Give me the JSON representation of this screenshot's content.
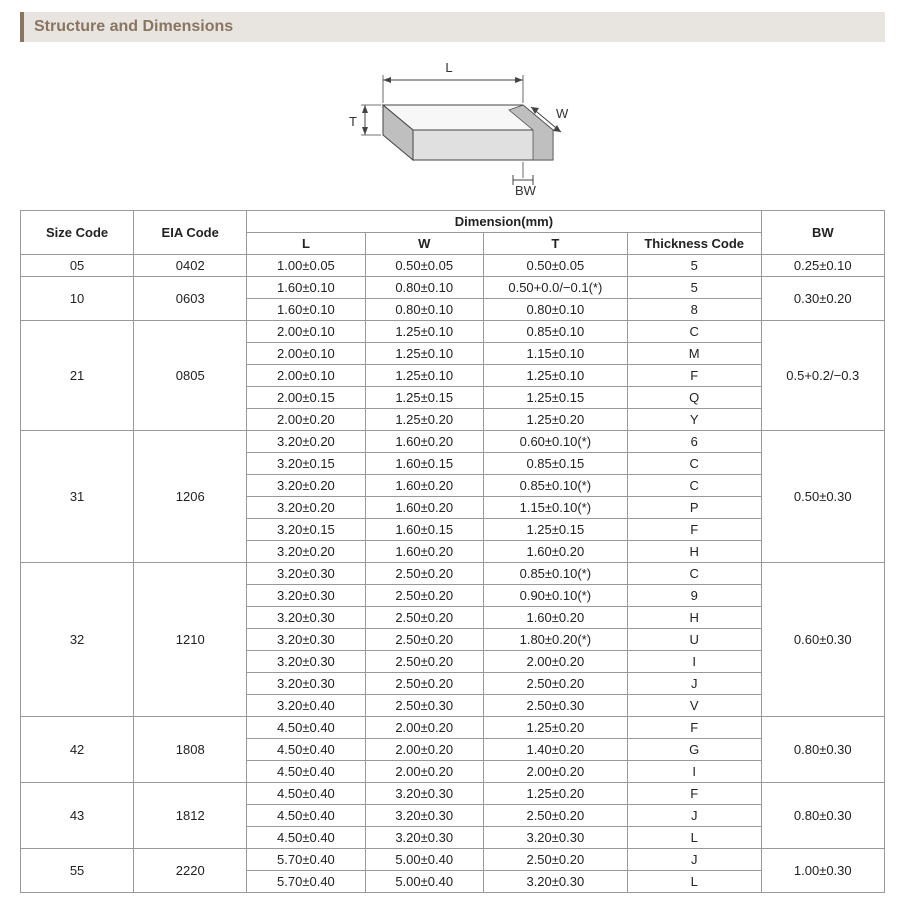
{
  "section_title": "Structure and Dimensions",
  "diagram": {
    "labels": {
      "L": "L",
      "W": "W",
      "T": "T",
      "BW": "BW"
    },
    "stroke": "#444444",
    "fill_light": "#f7f7f7",
    "fill_mid": "#e0e0e0",
    "fill_dark": "#bfbfbf",
    "text_color": "#333333",
    "font_size": 13
  },
  "table": {
    "headers": {
      "size_code": "Size Code",
      "eia_code": "EIA Code",
      "dimension_group": "Dimension(mm)",
      "L": "L",
      "W": "W",
      "T": "T",
      "thickness_code": "Thickness  Code",
      "BW": "BW"
    },
    "col_widths": [
      "110px",
      "110px",
      "115px",
      "115px",
      "140px",
      "130px",
      "120px"
    ],
    "groups": [
      {
        "size_code": "05",
        "eia_code": "0402",
        "bw": "0.25±0.10",
        "rows": [
          {
            "L": "1.00±0.05",
            "W": "0.50±0.05",
            "T": "0.50±0.05",
            "TC": "5"
          }
        ]
      },
      {
        "size_code": "10",
        "eia_code": "0603",
        "bw": "0.30±0.20",
        "rows": [
          {
            "L": "1.60±0.10",
            "W": "0.80±0.10",
            "T": "0.50+0.0/−0.1(*)",
            "TC": "5"
          },
          {
            "L": "1.60±0.10",
            "W": "0.80±0.10",
            "T": "0.80±0.10",
            "TC": "8"
          }
        ]
      },
      {
        "size_code": "21",
        "eia_code": "0805",
        "bw": "0.5+0.2/−0.3",
        "rows": [
          {
            "L": "2.00±0.10",
            "W": "1.25±0.10",
            "T": "0.85±0.10",
            "TC": "C"
          },
          {
            "L": "2.00±0.10",
            "W": "1.25±0.10",
            "T": "1.15±0.10",
            "TC": "M"
          },
          {
            "L": "2.00±0.10",
            "W": "1.25±0.10",
            "T": "1.25±0.10",
            "TC": "F"
          },
          {
            "L": "2.00±0.15",
            "W": "1.25±0.15",
            "T": "1.25±0.15",
            "TC": "Q"
          },
          {
            "L": "2.00±0.20",
            "W": "1.25±0.20",
            "T": "1.25±0.20",
            "TC": "Y"
          }
        ]
      },
      {
        "size_code": "31",
        "eia_code": "1206",
        "bw": "0.50±0.30",
        "rows": [
          {
            "L": "3.20±0.20",
            "W": "1.60±0.20",
            "T": "0.60±0.10(*)",
            "TC": "6"
          },
          {
            "L": "3.20±0.15",
            "W": "1.60±0.15",
            "T": "0.85±0.15",
            "TC": "C"
          },
          {
            "L": "3.20±0.20",
            "W": "1.60±0.20",
            "T": "0.85±0.10(*)",
            "TC": "C"
          },
          {
            "L": "3.20±0.20",
            "W": "1.60±0.20",
            "T": "1.15±0.10(*)",
            "TC": "P"
          },
          {
            "L": "3.20±0.15",
            "W": "1.60±0.15",
            "T": "1.25±0.15",
            "TC": "F"
          },
          {
            "L": "3.20±0.20",
            "W": "1.60±0.20",
            "T": "1.60±0.20",
            "TC": "H"
          }
        ]
      },
      {
        "size_code": "32",
        "eia_code": "1210",
        "bw": "0.60±0.30",
        "rows": [
          {
            "L": "3.20±0.30",
            "W": "2.50±0.20",
            "T": "0.85±0.10(*)",
            "TC": "C"
          },
          {
            "L": "3.20±0.30",
            "W": "2.50±0.20",
            "T": "0.90±0.10(*)",
            "TC": "9"
          },
          {
            "L": "3.20±0.30",
            "W": "2.50±0.20",
            "T": "1.60±0.20",
            "TC": "H"
          },
          {
            "L": "3.20±0.30",
            "W": "2.50±0.20",
            "T": "1.80±0.20(*)",
            "TC": "U"
          },
          {
            "L": "3.20±0.30",
            "W": "2.50±0.20",
            "T": "2.00±0.20",
            "TC": "I"
          },
          {
            "L": "3.20±0.30",
            "W": "2.50±0.20",
            "T": "2.50±0.20",
            "TC": "J"
          },
          {
            "L": "3.20±0.40",
            "W": "2.50±0.30",
            "T": "2.50±0.30",
            "TC": "V"
          }
        ]
      },
      {
        "size_code": "42",
        "eia_code": "1808",
        "bw": "0.80±0.30",
        "rows": [
          {
            "L": "4.50±0.40",
            "W": "2.00±0.20",
            "T": "1.25±0.20",
            "TC": "F"
          },
          {
            "L": "4.50±0.40",
            "W": "2.00±0.20",
            "T": "1.40±0.20",
            "TC": "G"
          },
          {
            "L": "4.50±0.40",
            "W": "2.00±0.20",
            "T": "2.00±0.20",
            "TC": "I"
          }
        ]
      },
      {
        "size_code": "43",
        "eia_code": "1812",
        "bw": "0.80±0.30",
        "rows": [
          {
            "L": "4.50±0.40",
            "W": "3.20±0.30",
            "T": "1.25±0.20",
            "TC": "F"
          },
          {
            "L": "4.50±0.40",
            "W": "3.20±0.30",
            "T": "2.50±0.20",
            "TC": "J"
          },
          {
            "L": "4.50±0.40",
            "W": "3.20±0.30",
            "T": "3.20±0.30",
            "TC": "L"
          }
        ]
      },
      {
        "size_code": "55",
        "eia_code": "2220",
        "bw": "1.00±0.30",
        "rows": [
          {
            "L": "5.70±0.40",
            "W": "5.00±0.40",
            "T": "2.50±0.20",
            "TC": "J"
          },
          {
            "L": "5.70±0.40",
            "W": "5.00±0.40",
            "T": "3.20±0.30",
            "TC": "L"
          }
        ]
      }
    ]
  }
}
